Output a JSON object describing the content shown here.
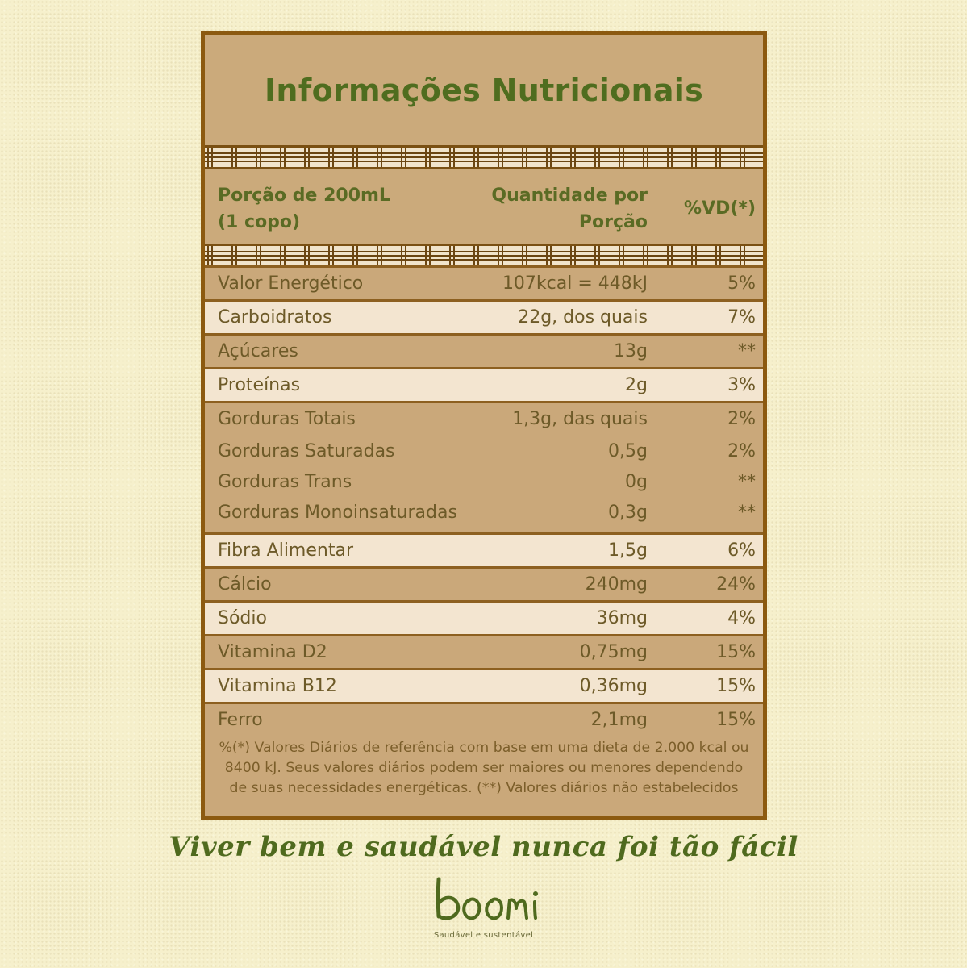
{
  "title": "Informações Nutricionais",
  "header": {
    "portion_line1": "Porção de 200mL",
    "portion_line2": "(1 copo)",
    "qty_line1": "Quantidade por",
    "qty_line2": "Porção",
    "vd": "%VD(*)"
  },
  "groups": [
    {
      "shade": "dark",
      "rows": [
        {
          "name": "Valor Energético",
          "qty": "107kcal = 448kJ",
          "vd": "5%"
        }
      ]
    },
    {
      "shade": "light",
      "rows": [
        {
          "name": "Carboidratos",
          "qty": "22g, dos quais",
          "vd": "7%"
        }
      ]
    },
    {
      "shade": "dark",
      "rows": [
        {
          "name": "Açúcares",
          "qty": "13g",
          "vd": "**"
        }
      ]
    },
    {
      "shade": "light",
      "rows": [
        {
          "name": "Proteínas",
          "qty": "2g",
          "vd": "3%"
        }
      ]
    },
    {
      "shade": "dark",
      "rows": [
        {
          "name": "Gorduras Totais",
          "qty": "1,3g, das quais",
          "vd": "2%"
        },
        {
          "name": "Gorduras Saturadas",
          "qty": "0,5g",
          "vd": "2%"
        },
        {
          "name": "Gorduras Trans",
          "qty": "0g",
          "vd": "**"
        },
        {
          "name": "Gorduras Monoinsaturadas",
          "qty": "0,3g",
          "vd": "**"
        }
      ]
    },
    {
      "shade": "light",
      "rows": [
        {
          "name": "Fibra Alimentar",
          "qty": "1,5g",
          "vd": "6%"
        }
      ]
    },
    {
      "shade": "dark",
      "rows": [
        {
          "name": "Cálcio",
          "qty": "240mg",
          "vd": "24%"
        }
      ]
    },
    {
      "shade": "light",
      "rows": [
        {
          "name": "Sódio",
          "qty": "36mg",
          "vd": "4%"
        }
      ]
    },
    {
      "shade": "dark",
      "rows": [
        {
          "name": "Vitamina D2",
          "qty": "0,75mg",
          "vd": "15%"
        }
      ]
    },
    {
      "shade": "light",
      "rows": [
        {
          "name": "Vitamina B12",
          "qty": "0,36mg",
          "vd": "15%"
        }
      ]
    },
    {
      "shade": "dark",
      "rows": [
        {
          "name": "Ferro",
          "qty": "2,1mg",
          "vd": "15%"
        }
      ]
    }
  ],
  "footnote": {
    "line1": "%(*) Valores Diários de referência com base em uma dieta de 2.000 kcal ou",
    "line2": "8400 kJ. Seus valores diários podem ser maiores ou menores dependendo",
    "line3": "de suas necessidades energéticas. (**) Valores diários não estabelecidos"
  },
  "tagline": "Viver bem e saudável nunca foi tão fácil",
  "brand": {
    "name": "boomi",
    "subtitle": "Saudável e sustentável"
  },
  "colors": {
    "background": "#f6f0cc",
    "panel": "#caa87a",
    "light_row": "#f3e5d0",
    "border": "#8c5a10",
    "accent_green": "#4f6d1f",
    "text_brown": "#6d5a28"
  }
}
